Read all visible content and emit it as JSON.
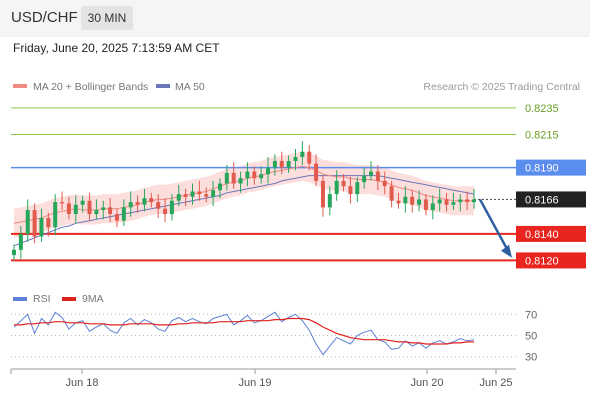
{
  "header": {
    "pair": "USD/CHF",
    "timeframe": "30 MIN",
    "datetime": "Friday, June 20, 2025 7:13:59 AM CET"
  },
  "legend": {
    "ma20": "MA 20 + Bollinger Bands",
    "ma50": "MA 50",
    "credit": "Research © 2025 Trading Central",
    "rsi": "RSI",
    "ma9": "9MA"
  },
  "colors": {
    "up": "#26a65b",
    "down": "#e05a4e",
    "ma20": "#ef8a84",
    "band": "#fbd6d3",
    "ma50": "#6b77b8",
    "rsi": "#5d7fd6",
    "rsi_ma": "#e0221d",
    "resistance": "#5b8def",
    "support": "#e8261f",
    "target": "#8cc63f",
    "current": "#222222",
    "arrow": "#2f5fa0"
  },
  "chart_data": [
    {
      "type": "candlestick",
      "title": "USD/CHF",
      "ylim": [
        0.8106,
        0.8244
      ],
      "x_ticks": [
        "Jun 18",
        "Jun 19",
        "Jun 20",
        "Jun 25"
      ],
      "y_ticks": [
        "0.8235",
        "0.8215",
        "0.8190",
        "0.8166",
        "0.8140",
        "0.8120"
      ],
      "levels": [
        {
          "value": 0.8235,
          "label": "0.8235",
          "kind": "target"
        },
        {
          "value": 0.8215,
          "label": "0.8215",
          "kind": "target"
        },
        {
          "value": 0.819,
          "label": "0.8190",
          "kind": "resistance"
        },
        {
          "value": 0.8166,
          "label": "0.8166",
          "kind": "current"
        },
        {
          "value": 0.814,
          "label": "0.8140",
          "kind": "support"
        },
        {
          "value": 0.812,
          "label": "0.8120",
          "kind": "support"
        }
      ],
      "scenario_arrow": {
        "from": 0.8166,
        "to": 0.8122
      },
      "close": [
        0.8128,
        0.814,
        0.8158,
        0.8138,
        0.8152,
        0.8145,
        0.8164,
        0.8163,
        0.8155,
        0.8162,
        0.8165,
        0.8155,
        0.8158,
        0.816,
        0.8155,
        0.815,
        0.816,
        0.8164,
        0.8162,
        0.8167,
        0.8164,
        0.8159,
        0.8155,
        0.8165,
        0.817,
        0.8168,
        0.8172,
        0.817,
        0.8168,
        0.8173,
        0.8178,
        0.8186,
        0.8178,
        0.8182,
        0.8187,
        0.8182,
        0.8185,
        0.819,
        0.8195,
        0.819,
        0.8195,
        0.8198,
        0.8202,
        0.8193,
        0.818,
        0.816,
        0.817,
        0.818,
        0.8176,
        0.817,
        0.8179,
        0.8184,
        0.8187,
        0.818,
        0.8176,
        0.8165,
        0.8163,
        0.8168,
        0.8162,
        0.8166,
        0.8158,
        0.8163,
        0.8166,
        0.8162,
        0.8164,
        0.8166,
        0.8164,
        0.8166
      ],
      "ma20_values": [
        0.8148,
        0.8149,
        0.815,
        0.8151,
        0.8152,
        0.8154,
        0.8156,
        0.8157,
        0.8158,
        0.8159,
        0.8158,
        0.8158,
        0.8158,
        0.8159,
        0.8159,
        0.8159,
        0.816,
        0.8161,
        0.8162,
        0.8164,
        0.8165,
        0.8166,
        0.8166,
        0.8167,
        0.8168,
        0.8169,
        0.817,
        0.8171,
        0.8172,
        0.8174,
        0.8176,
        0.8178,
        0.8179,
        0.818,
        0.8182,
        0.8183,
        0.8184,
        0.8186,
        0.8187,
        0.8188,
        0.8189,
        0.819,
        0.8191,
        0.819,
        0.8188,
        0.8185,
        0.8184,
        0.8183,
        0.8183,
        0.8182,
        0.8181,
        0.8181,
        0.8181,
        0.818,
        0.8179,
        0.8177,
        0.8175,
        0.8174,
        0.8173,
        0.8171,
        0.8169,
        0.8168,
        0.8167,
        0.8166,
        0.8165,
        0.8165,
        0.8165,
        0.8165
      ],
      "ma50_values": [
        0.8131,
        0.8133,
        0.8135,
        0.8137,
        0.8139,
        0.8141,
        0.8143,
        0.8145,
        0.8146,
        0.8148,
        0.8149,
        0.815,
        0.8151,
        0.8152,
        0.8153,
        0.8154,
        0.8155,
        0.8156,
        0.8157,
        0.8158,
        0.8159,
        0.816,
        0.8161,
        0.8162,
        0.8163,
        0.8164,
        0.8165,
        0.8166,
        0.8167,
        0.8168,
        0.8169,
        0.8171,
        0.8172,
        0.8173,
        0.8174,
        0.8175,
        0.8176,
        0.8177,
        0.8178,
        0.818,
        0.8181,
        0.8182,
        0.8183,
        0.8184,
        0.8184,
        0.8184,
        0.8184,
        0.8184,
        0.8184,
        0.8184,
        0.8184,
        0.8184,
        0.8184,
        0.8184,
        0.8183,
        0.8182,
        0.8181,
        0.818,
        0.8179,
        0.8178,
        0.8177,
        0.8176,
        0.8175,
        0.8174,
        0.8173,
        0.8172,
        0.8171,
        0.817
      ]
    },
    {
      "type": "line",
      "ylim": [
        25,
        75
      ],
      "y_ticks": [
        "70",
        "50",
        "30"
      ],
      "series": [
        {
          "name": "RSI",
          "values": [
            58,
            64,
            70,
            52,
            66,
            60,
            72,
            67,
            56,
            62,
            64,
            54,
            58,
            61,
            55,
            52,
            62,
            66,
            60,
            65,
            62,
            56,
            54,
            64,
            67,
            63,
            66,
            63,
            61,
            66,
            68,
            70,
            60,
            64,
            69,
            62,
            64,
            68,
            72,
            63,
            67,
            70,
            64,
            55,
            42,
            32,
            40,
            48,
            45,
            42,
            50,
            53,
            55,
            46,
            44,
            37,
            38,
            45,
            40,
            43,
            38,
            43,
            45,
            42,
            44,
            47,
            45,
            46
          ]
        },
        {
          "name": "9MA",
          "values": [
            60,
            60,
            61,
            61,
            62,
            62,
            63,
            63,
            62,
            62,
            62,
            61,
            61,
            61,
            60,
            60,
            60,
            61,
            61,
            61,
            61,
            60,
            60,
            60,
            61,
            61,
            62,
            62,
            62,
            62,
            63,
            63,
            63,
            63,
            64,
            64,
            64,
            64,
            65,
            65,
            66,
            66,
            66,
            65,
            62,
            58,
            55,
            52,
            50,
            48,
            47,
            46,
            46,
            46,
            46,
            45,
            44,
            44,
            43,
            43,
            42,
            42,
            42,
            42,
            43,
            43,
            44,
            44
          ]
        }
      ]
    }
  ]
}
